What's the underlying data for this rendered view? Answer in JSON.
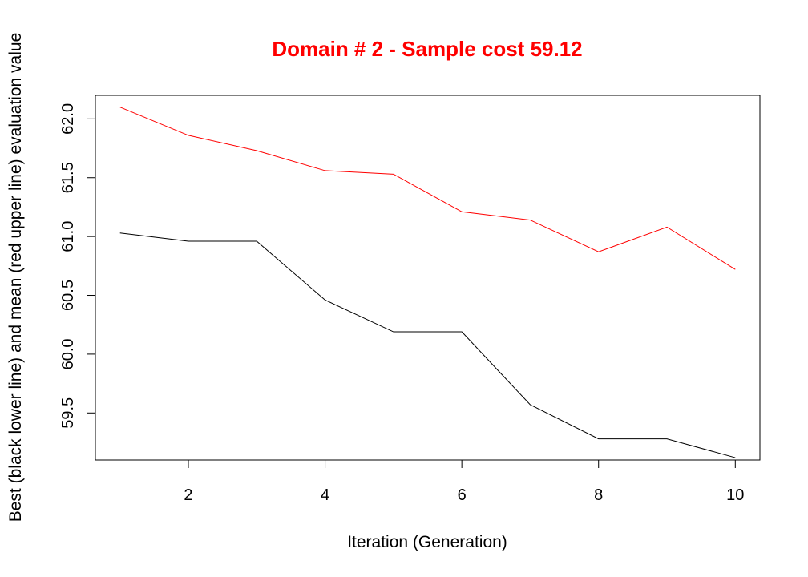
{
  "chart_data": {
    "type": "line",
    "title": "Domain # 2  - Sample cost 59.12",
    "title_color": "#ff0000",
    "xlabel": "Iteration (Generation)",
    "ylabel": "Best (black lower line) and mean (red upper line) evaluation value",
    "x": [
      1,
      2,
      3,
      4,
      5,
      6,
      7,
      8,
      9,
      10
    ],
    "xlim": [
      0.64,
      10.36
    ],
    "ylim": [
      59.1,
      62.2
    ],
    "x_ticks": [
      2,
      4,
      6,
      8,
      10
    ],
    "x_tick_labels": [
      "2",
      "4",
      "6",
      "8",
      "10"
    ],
    "y_ticks": [
      59.5,
      60.0,
      60.5,
      61.0,
      61.5,
      62.0
    ],
    "y_tick_labels": [
      "59.5",
      "60.0",
      "60.5",
      "61.0",
      "61.5",
      "62.0"
    ],
    "grid": false,
    "series": [
      {
        "color": "#ff0000",
        "values": [
          62.1,
          61.86,
          61.73,
          61.56,
          61.53,
          61.21,
          61.14,
          60.87,
          61.08,
          60.72
        ]
      },
      {
        "color": "#000000",
        "values": [
          61.03,
          60.96,
          60.96,
          60.46,
          60.19,
          60.19,
          59.57,
          59.28,
          59.28,
          59.12
        ]
      }
    ]
  }
}
